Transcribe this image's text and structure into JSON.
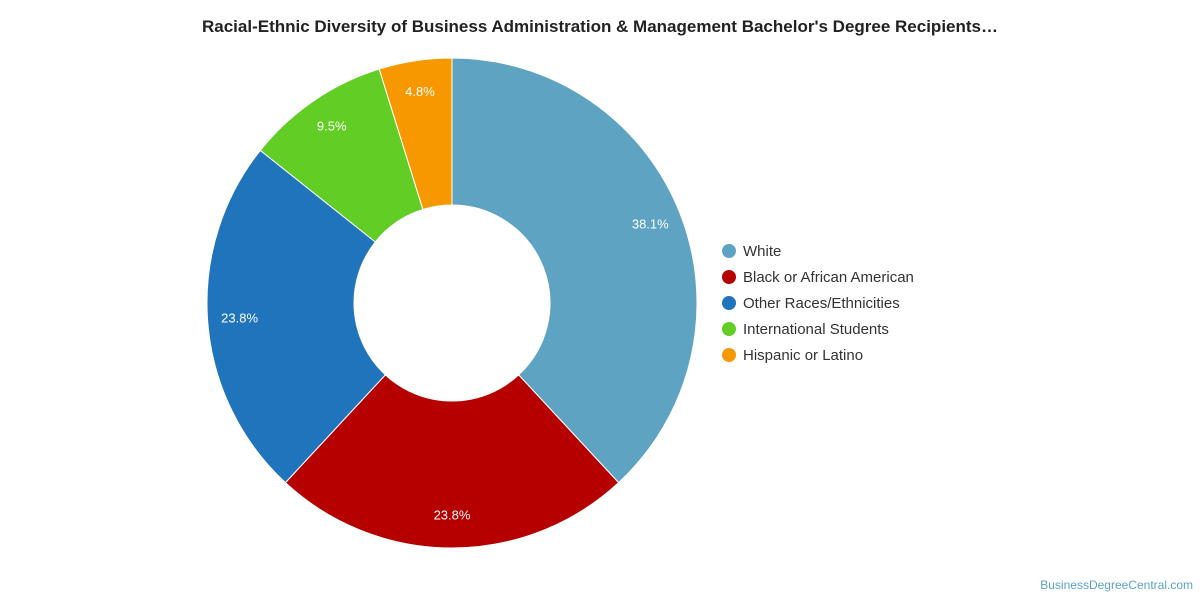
{
  "chart_data": {
    "type": "pie",
    "title": "Racial-Ethnic Diversity of Business Administration & Management Bachelor's Degree Recipients…",
    "categories": [
      "White",
      "Black or African American",
      "Other Races/Ethnicities",
      "International Students",
      "Hispanic or Latino"
    ],
    "values": [
      38.1,
      23.8,
      23.8,
      9.5,
      4.8
    ],
    "value_labels": [
      "38.1%",
      "23.8%",
      "23.8%",
      "9.5%",
      "4.8%"
    ],
    "colors": [
      "#5ea3c1",
      "#b60000",
      "#1f74bc",
      "#62cd25",
      "#f79800"
    ],
    "donut": true,
    "legend_position": "right"
  },
  "footer": {
    "source": "BusinessDegreeCentral.com"
  }
}
